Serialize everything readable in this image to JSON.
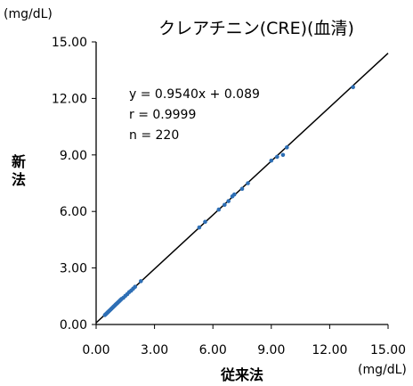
{
  "chart_data": {
    "type": "scatter",
    "title": "クレアチニン(CRE)(血清)",
    "xlabel": "従来法",
    "ylabel": "新法",
    "x_unit": "(mg/dL)",
    "y_unit": "(mg/dL)",
    "xlim": [
      0,
      15
    ],
    "ylim": [
      0,
      15
    ],
    "x_ticks": [
      "0.00",
      "3.00",
      "6.00",
      "9.00",
      "12.00",
      "15.00"
    ],
    "y_ticks": [
      "0.00",
      "3.00",
      "6.00",
      "9.00",
      "12.00",
      "15.00"
    ],
    "annotations": [
      "y = 0.9540x + 0.089",
      "r = 0.9999",
      "n = 220"
    ],
    "regression": {
      "slope": 0.954,
      "intercept": 0.089
    },
    "grid": false,
    "legend": "none",
    "colors": {
      "points": "#2e6fb5",
      "line": "#000000"
    },
    "points": [
      [
        0.45,
        0.5
      ],
      [
        0.5,
        0.55
      ],
      [
        0.55,
        0.6
      ],
      [
        0.6,
        0.65
      ],
      [
        0.65,
        0.7
      ],
      [
        0.7,
        0.75
      ],
      [
        0.75,
        0.8
      ],
      [
        0.8,
        0.85
      ],
      [
        0.85,
        0.9
      ],
      [
        0.9,
        0.95
      ],
      [
        0.95,
        1.0
      ],
      [
        1.0,
        1.05
      ],
      [
        1.05,
        1.1
      ],
      [
        1.1,
        1.15
      ],
      [
        1.15,
        1.2
      ],
      [
        1.2,
        1.25
      ],
      [
        1.25,
        1.3
      ],
      [
        1.3,
        1.35
      ],
      [
        1.4,
        1.42
      ],
      [
        1.5,
        1.52
      ],
      [
        1.6,
        1.61
      ],
      [
        1.7,
        1.72
      ],
      [
        1.8,
        1.8
      ],
      [
        1.9,
        1.9
      ],
      [
        2.0,
        2.0
      ],
      [
        2.3,
        2.3
      ],
      [
        5.3,
        5.15
      ],
      [
        5.6,
        5.45
      ],
      [
        6.3,
        6.1
      ],
      [
        6.6,
        6.35
      ],
      [
        6.8,
        6.55
      ],
      [
        7.0,
        6.8
      ],
      [
        7.1,
        6.9
      ],
      [
        7.5,
        7.2
      ],
      [
        7.8,
        7.5
      ],
      [
        9.0,
        8.7
      ],
      [
        9.3,
        8.9
      ],
      [
        9.6,
        9.0
      ],
      [
        9.8,
        9.4
      ],
      [
        13.2,
        12.6
      ]
    ]
  }
}
